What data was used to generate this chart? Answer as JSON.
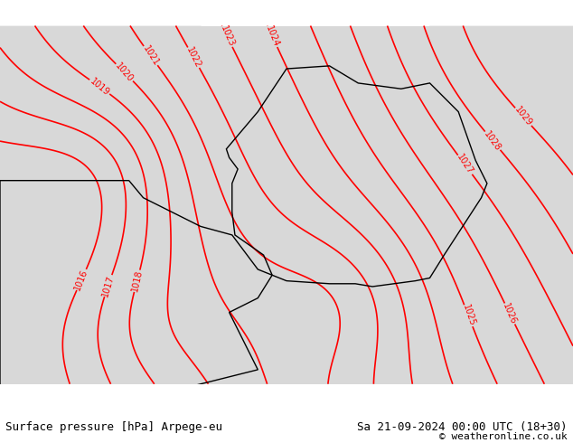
{
  "title_left": "Surface pressure [hPa] Arpege-eu",
  "title_right": "Sa 21-09-2024 00:00 UTC (18+30)",
  "copyright": "© weatheronline.co.uk",
  "bg_color": "#ffffff",
  "map_bg_gray": "#d8d8d8",
  "map_bg_green": "#b5e6a0",
  "contour_color": "#ff0000",
  "border_color": "#000000",
  "label_color": "#ff0000",
  "footer_bg": "#ffffff",
  "footer_text_color": "#000000",
  "pressure_min": 1016,
  "pressure_max": 1029,
  "pressure_step": 1,
  "figsize": [
    6.34,
    4.9
  ],
  "dpi": 100,
  "footer_fontsize": 9,
  "label_fontsize": 7,
  "contour_linewidth": 1.2
}
